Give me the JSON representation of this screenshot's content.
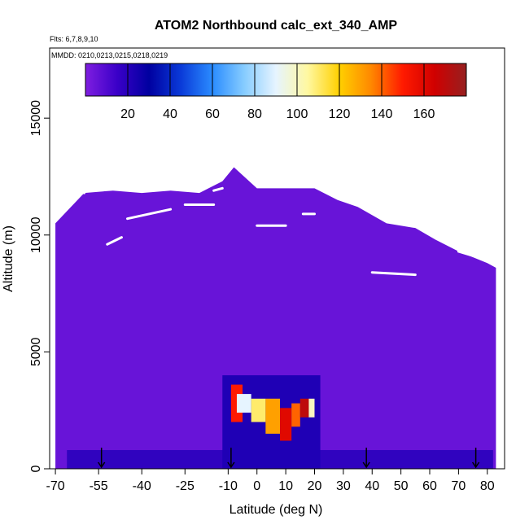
{
  "chart_data": {
    "type": "heatmap",
    "title": "ATOM2 Northbound calc_ext_340_AMP",
    "flights_note": "Flts: 6,7,8,9,10",
    "dates_note": "MMDD: 0210,0213,0215,0218,0219",
    "xlabel": "Latitude (deg N)",
    "ylabel": "Altitude (m)",
    "xlim": [
      -72,
      86
    ],
    "ylim": [
      0,
      18000
    ],
    "x_ticks": [
      -70,
      -55,
      -40,
      -25,
      -10,
      0,
      10,
      20,
      30,
      40,
      50,
      60,
      70,
      80
    ],
    "x_ticklabels": [
      "-70",
      "-55",
      "-40",
      "-25",
      "-10",
      "0",
      "10",
      "20",
      "30",
      "40",
      "50",
      "60",
      "70",
      "80"
    ],
    "y_ticks": [
      0,
      5000,
      10000,
      15000
    ],
    "y_ticklabels": [
      "0",
      "5000",
      "10000",
      "15000"
    ],
    "colorbar": {
      "range": [
        0,
        180
      ],
      "ticks": [
        20,
        40,
        60,
        80,
        100,
        120,
        140,
        160
      ],
      "ticklabels": [
        "20",
        "40",
        "60",
        "80",
        "100",
        "120",
        "140",
        "160"
      ],
      "colors": [
        "#7f1ee0",
        "#3a00c8",
        "#0000a0",
        "#0a3ad8",
        "#2a8cff",
        "#86ccff",
        "#e6f4ff",
        "#fff8a0",
        "#ffd000",
        "#ff8800",
        "#ff1a00",
        "#d00000",
        "#962020"
      ]
    },
    "background_value": 5,
    "profile_top": [
      {
        "x": -70,
        "y": 10500
      },
      {
        "x": -60,
        "y": 11800
      },
      {
        "x": -50,
        "y": 11900
      },
      {
        "x": -40,
        "y": 11800
      },
      {
        "x": -30,
        "y": 11900
      },
      {
        "x": -20,
        "y": 11800
      },
      {
        "x": -12,
        "y": 12300
      },
      {
        "x": -8,
        "y": 12900
      },
      {
        "x": 0,
        "y": 12000
      },
      {
        "x": 10,
        "y": 12000
      },
      {
        "x": 20,
        "y": 12000
      },
      {
        "x": 28,
        "y": 11500
      },
      {
        "x": 35,
        "y": 11200
      },
      {
        "x": 45,
        "y": 10500
      },
      {
        "x": 55,
        "y": 10300
      },
      {
        "x": 62,
        "y": 9800
      },
      {
        "x": 70,
        "y": 9300
      },
      {
        "x": 76,
        "y": 9000
      },
      {
        "x": 80,
        "y": 8800
      },
      {
        "x": 83,
        "y": 8600
      }
    ],
    "high_regions": [
      {
        "lat": [
          -9,
          -5
        ],
        "alt": [
          2000,
          3600
        ],
        "value": 150
      },
      {
        "lat": [
          -7,
          -2
        ],
        "alt": [
          2400,
          3200
        ],
        "value": 90
      },
      {
        "lat": [
          -2,
          3
        ],
        "alt": [
          2000,
          3000
        ],
        "value": 110
      },
      {
        "lat": [
          3,
          8
        ],
        "alt": [
          1500,
          3000
        ],
        "value": 130
      },
      {
        "lat": [
          8,
          12
        ],
        "alt": [
          1200,
          2600
        ],
        "value": 160
      },
      {
        "lat": [
          12,
          15
        ],
        "alt": [
          1800,
          2800
        ],
        "value": 140
      },
      {
        "lat": [
          15,
          18
        ],
        "alt": [
          2200,
          3000
        ],
        "value": 170
      },
      {
        "lat": [
          18,
          20
        ],
        "alt": [
          2200,
          3000
        ],
        "value": 100
      }
    ],
    "flight_tracks": [
      {
        "lat": [
          -65,
          -60
        ],
        "alt": [
          11900,
          11800
        ]
      },
      {
        "lat": [
          -52,
          -47
        ],
        "alt": [
          9600,
          9900
        ]
      },
      {
        "lat": [
          -45,
          -30
        ],
        "alt": [
          10700,
          11100
        ]
      },
      {
        "lat": [
          -25,
          -15
        ],
        "alt": [
          11300,
          11300
        ]
      },
      {
        "lat": [
          -15,
          -12
        ],
        "alt": [
          11900,
          12000
        ]
      },
      {
        "lat": [
          0,
          10
        ],
        "alt": [
          10400,
          10400
        ]
      },
      {
        "lat": [
          16,
          20
        ],
        "alt": [
          10900,
          10900
        ]
      },
      {
        "lat": [
          40,
          55
        ],
        "alt": [
          8400,
          8300
        ]
      },
      {
        "lat": [
          70,
          78
        ],
        "alt": [
          9300,
          9000
        ]
      }
    ],
    "arrows_lat": [
      -54,
      -9,
      38,
      76
    ]
  }
}
